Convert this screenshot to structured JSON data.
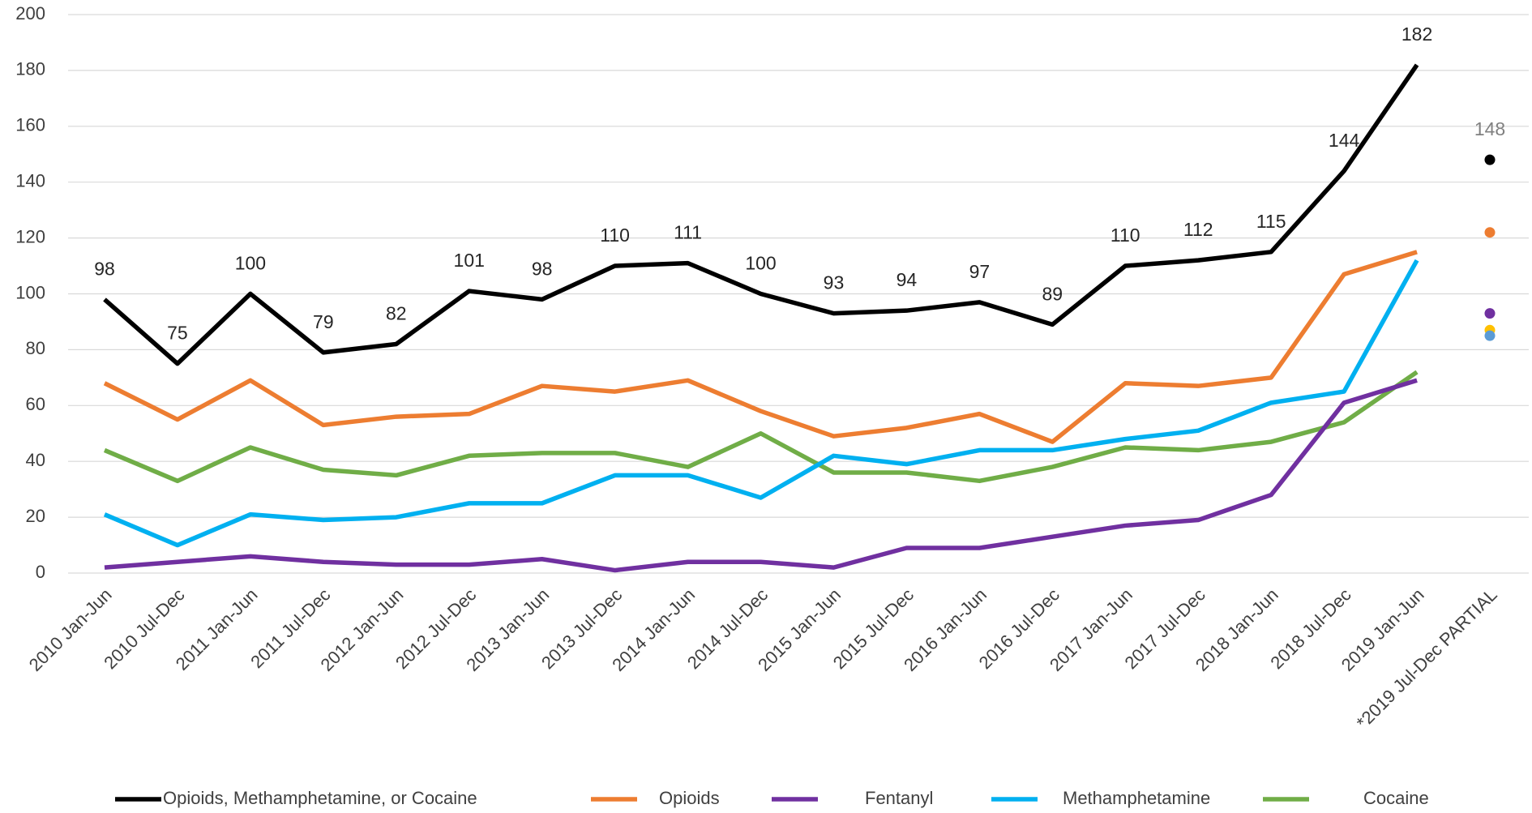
{
  "chart_data": {
    "type": "line",
    "categories": [
      "2010 Jan-Jun",
      "2010 Jul-Dec",
      "2011 Jan-Jun",
      "2011 Jul-Dec",
      "2012 Jan-Jun",
      "2012 Jul-Dec",
      "2013 Jan-Jun",
      "2013 Jul-Dec",
      "2014 Jan-Jun",
      "2014 Jul-Dec",
      "2015 Jan-Jun",
      "2015 Jul-Dec",
      "2016 Jan-Jun",
      "2016 Jul-Dec",
      "2017 Jan-Jun",
      "2017 Jul-Dec",
      "2018 Jan-Jun",
      "2018 Jul-Dec",
      "2019 Jan-Jun",
      "*2019 Jul-Dec PARTIAL"
    ],
    "series": [
      {
        "name": "Opioids, Methamphetamine, or Cocaine",
        "color": "#000000",
        "marker_color": "#000000",
        "data_labels": true,
        "values": [
          98,
          75,
          100,
          79,
          82,
          101,
          98,
          110,
          111,
          100,
          93,
          94,
          97,
          89,
          110,
          112,
          115,
          144,
          182,
          148
        ]
      },
      {
        "name": "Opioids",
        "color": "#ed7d31",
        "marker_color": "#ed7d31",
        "values": [
          68,
          55,
          69,
          53,
          56,
          57,
          67,
          65,
          69,
          58,
          49,
          52,
          57,
          47,
          68,
          67,
          70,
          107,
          115,
          122
        ]
      },
      {
        "name": "Fentanyl",
        "color": "#7030a0",
        "marker_color": "#7030a0",
        "values": [
          2,
          4,
          6,
          4,
          3,
          3,
          5,
          1,
          4,
          4,
          2,
          9,
          9,
          13,
          17,
          19,
          28,
          61,
          69,
          93
        ]
      },
      {
        "name": "Methamphetamine",
        "color": "#00b0f0",
        "marker_color": "#5b9bd5",
        "values": [
          21,
          10,
          21,
          19,
          20,
          25,
          25,
          35,
          35,
          27,
          42,
          39,
          44,
          44,
          48,
          51,
          61,
          65,
          112,
          85
        ]
      },
      {
        "name": "Cocaine",
        "color": "#70ad47",
        "marker_color": "#ffc000",
        "values": [
          44,
          33,
          45,
          37,
          35,
          42,
          43,
          43,
          38,
          50,
          36,
          36,
          33,
          38,
          45,
          44,
          47,
          54,
          72,
          87
        ]
      }
    ],
    "ylim": [
      0,
      200
    ],
    "yticks": [
      0,
      20,
      40,
      60,
      80,
      100,
      120,
      140,
      160,
      180,
      200
    ],
    "grid": true,
    "legend": "bottom"
  }
}
